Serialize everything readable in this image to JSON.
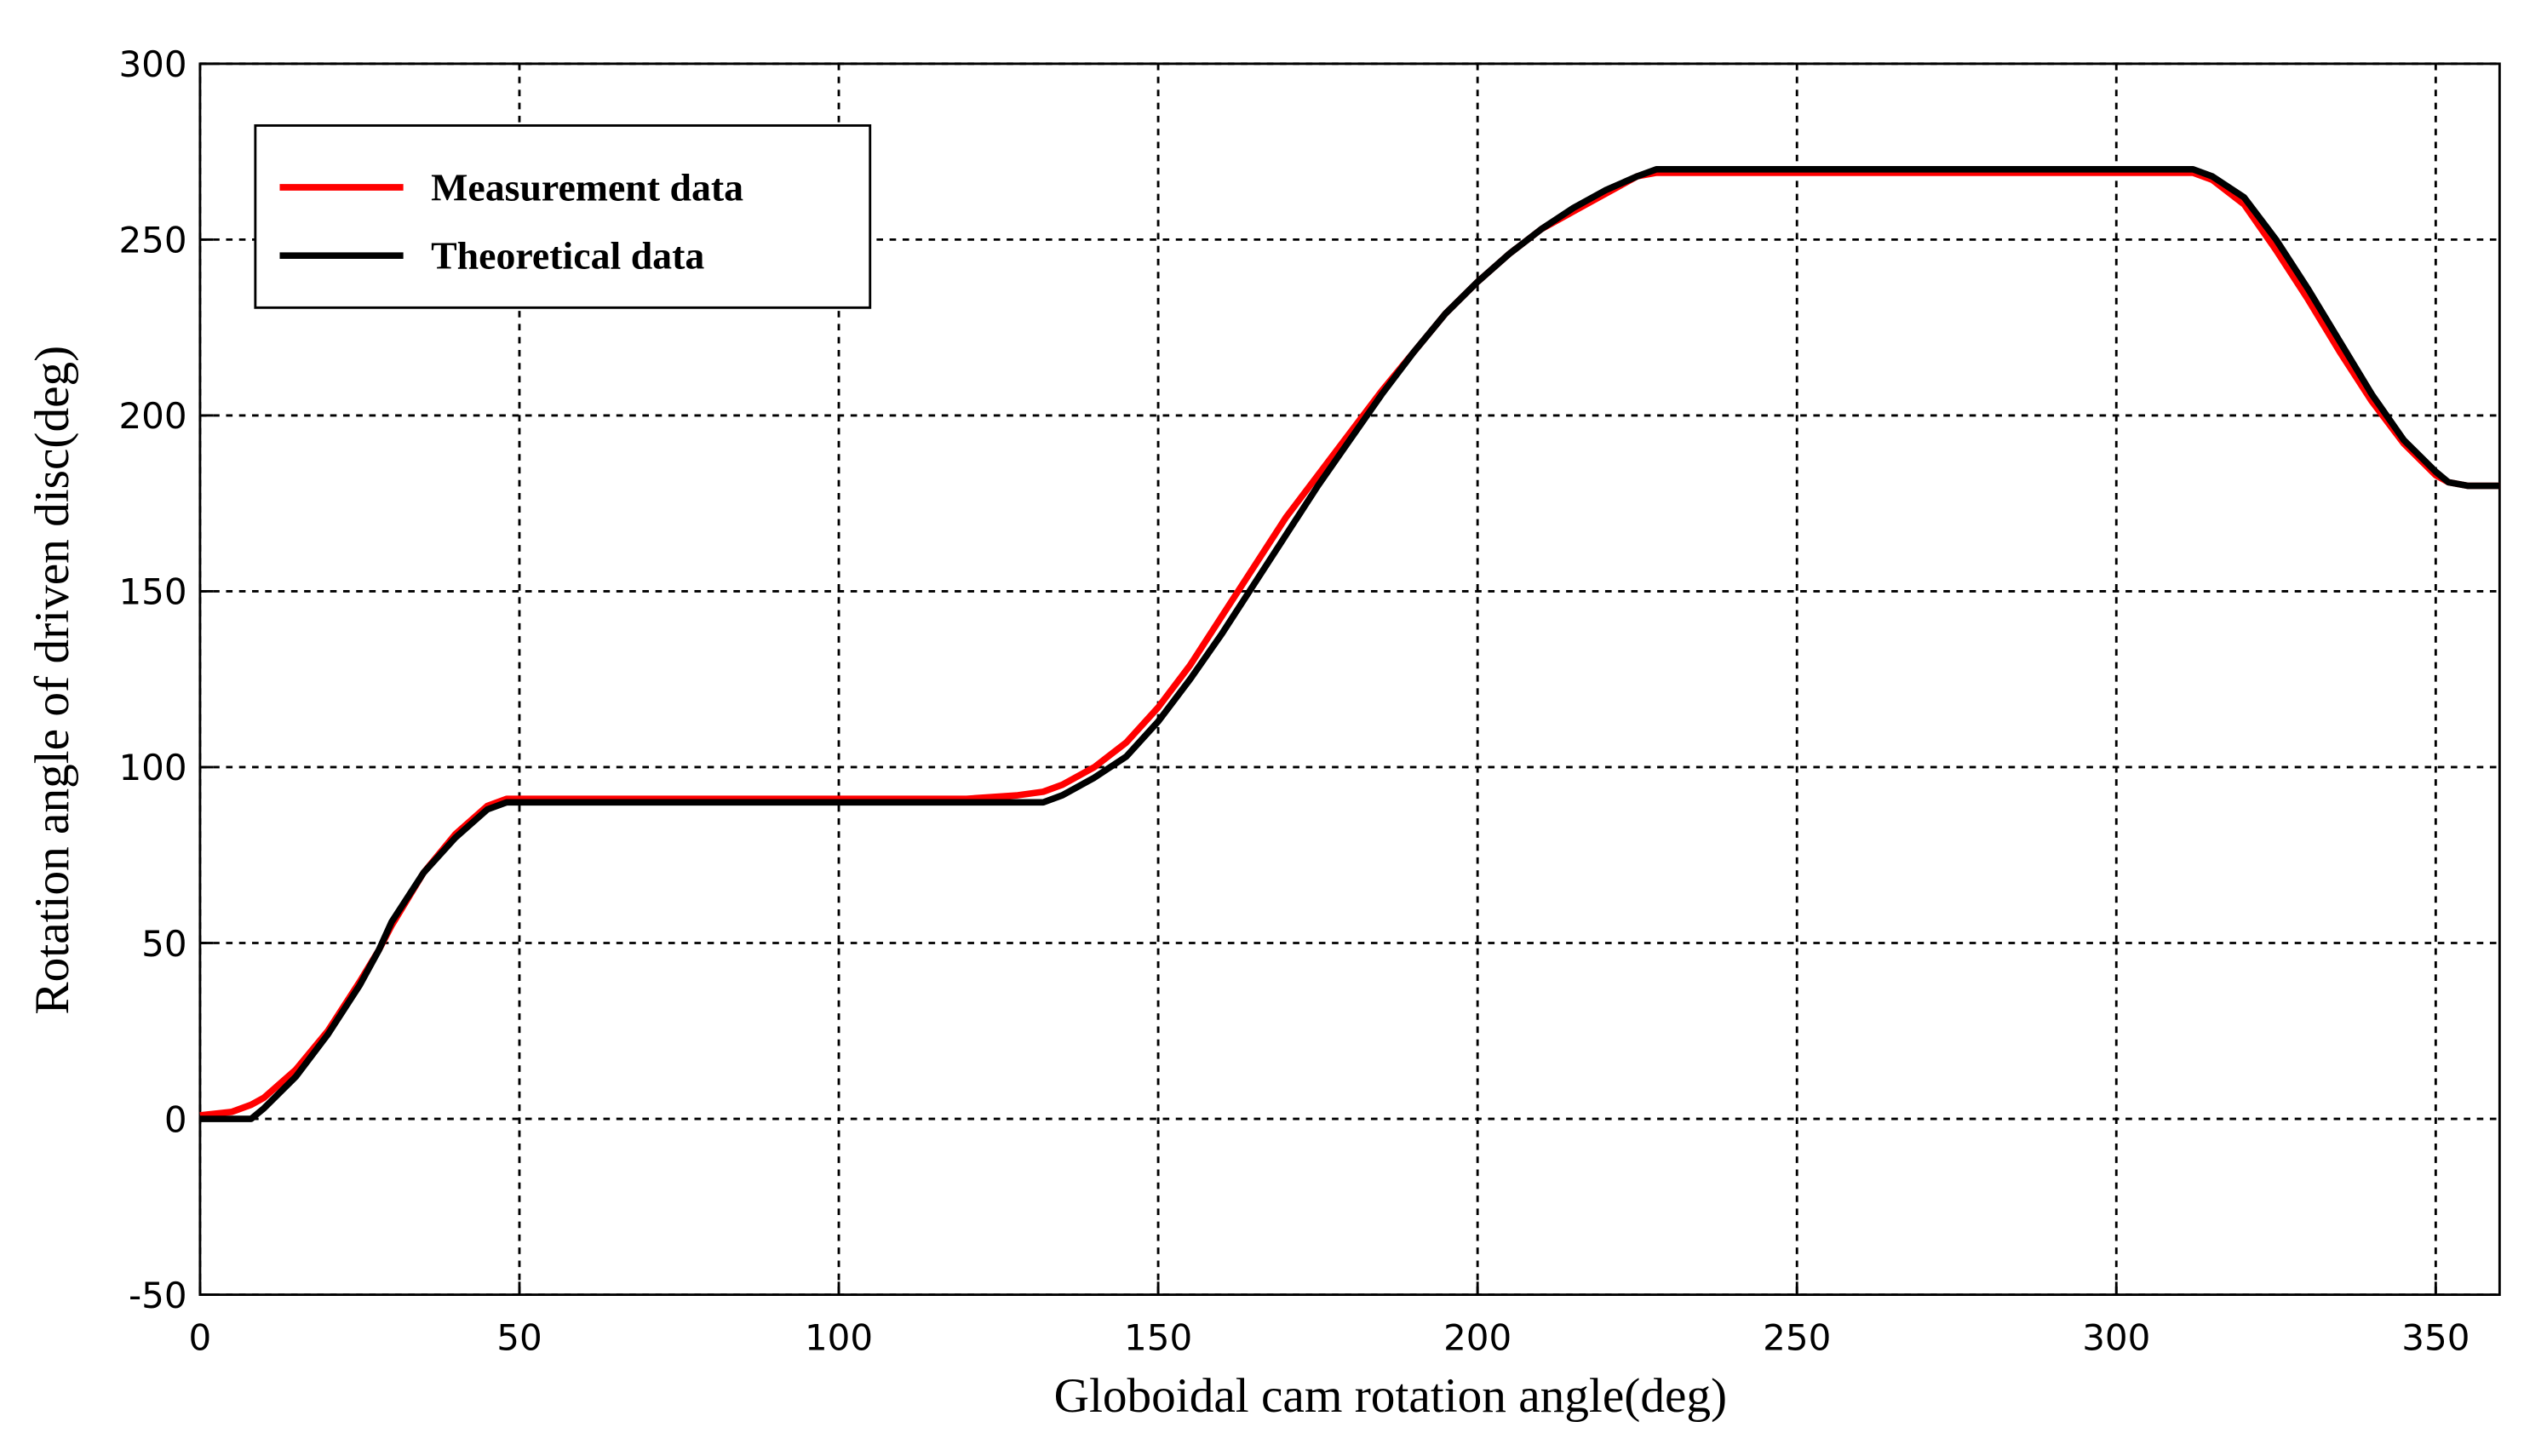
{
  "chart_data": {
    "type": "line",
    "xlabel": "Globoidal cam rotation angle(deg)",
    "ylabel": "Rotation angle of driven disc(deg)",
    "x": [
      0,
      5,
      8,
      10,
      15,
      20,
      25,
      28,
      30,
      35,
      40,
      45,
      48,
      50,
      60,
      80,
      100,
      120,
      128,
      132,
      135,
      140,
      145,
      150,
      155,
      160,
      165,
      170,
      175,
      180,
      185,
      190,
      195,
      200,
      205,
      210,
      215,
      220,
      225,
      228,
      240,
      260,
      280,
      300,
      312,
      315,
      320,
      325,
      330,
      335,
      340,
      345,
      350,
      352,
      355,
      360
    ],
    "series": [
      {
        "name": "Measurement data",
        "color": "#ff0000",
        "values": [
          1,
          2,
          4,
          6,
          14,
          25,
          39,
          48,
          55,
          70,
          81,
          89,
          91,
          91,
          91,
          91,
          91,
          91,
          92,
          93,
          95,
          100,
          107,
          117,
          129,
          143,
          157,
          171,
          183,
          195,
          207,
          218,
          229,
          238,
          246,
          253,
          258,
          263,
          268,
          269,
          269,
          269,
          269,
          269,
          269,
          267,
          260,
          247,
          233,
          218,
          204,
          192,
          183,
          181,
          180,
          180
        ]
      },
      {
        "name": "Theoretical data",
        "color": "#000000",
        "values": [
          0,
          0,
          0,
          3,
          12,
          24,
          38,
          48,
          56,
          70,
          80,
          88,
          90,
          90,
          90,
          90,
          90,
          90,
          90,
          90,
          92,
          97,
          103,
          113,
          125,
          138,
          152,
          166,
          180,
          193,
          206,
          218,
          229,
          238,
          246,
          253,
          259,
          264,
          268,
          270,
          270,
          270,
          270,
          270,
          270,
          268,
          262,
          250,
          236,
          221,
          206,
          193,
          184,
          181,
          180,
          180
        ]
      }
    ],
    "xlim": [
      0,
      360
    ],
    "xticks": [
      0,
      50,
      100,
      150,
      200,
      250,
      300,
      350
    ],
    "ylim": [
      -50,
      300
    ],
    "yticks": [
      -50,
      0,
      50,
      100,
      150,
      200,
      250,
      300
    ],
    "grid": true,
    "legend": "upper left"
  }
}
